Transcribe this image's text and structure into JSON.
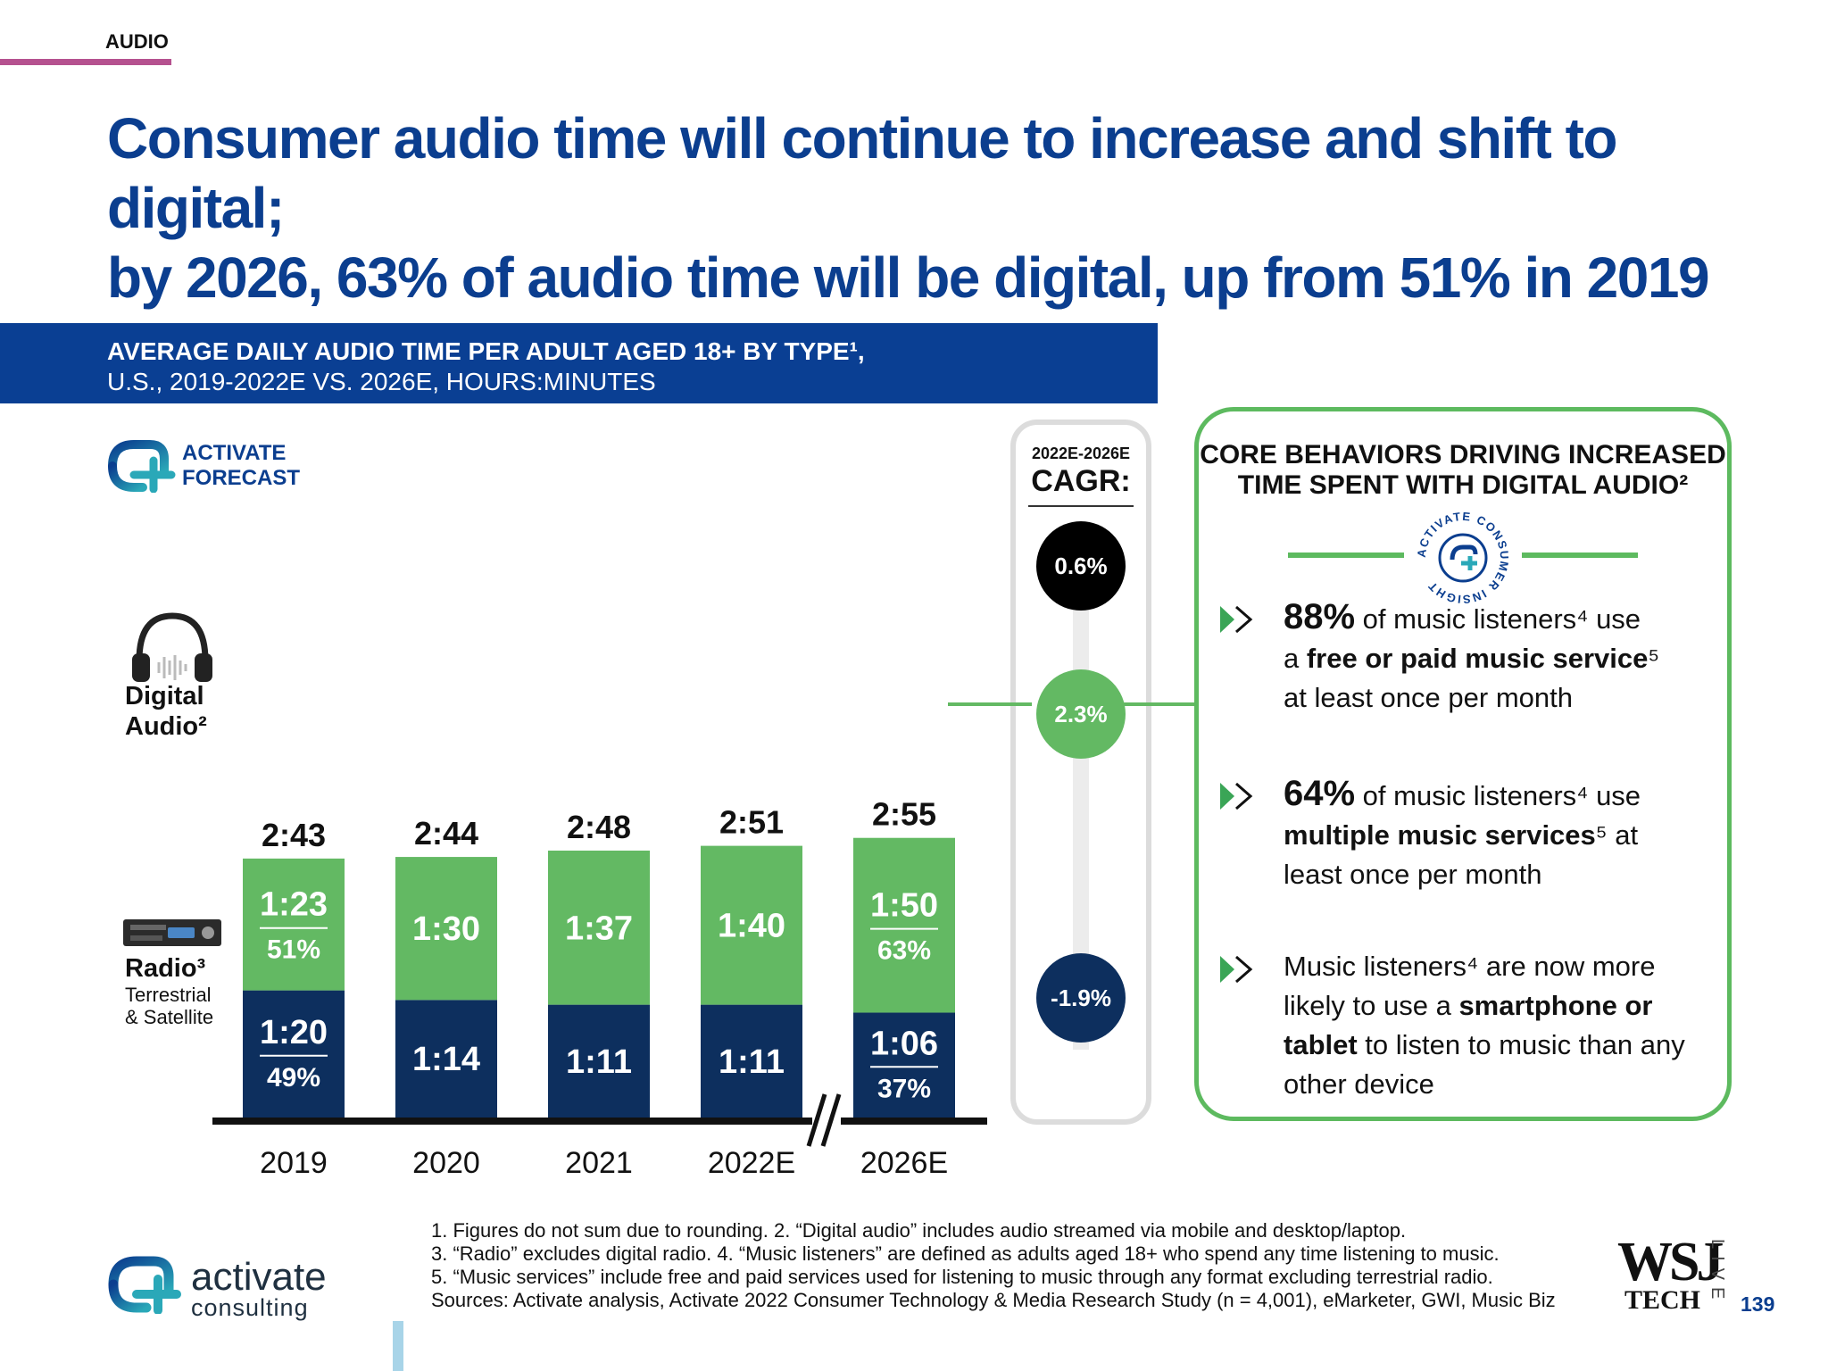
{
  "section": "AUDIO",
  "headline": {
    "line1": "Consumer audio time will continue to increase and shift to digital;",
    "line2": "by 2026, 63% of audio time will be digital, up from 51% in 2019"
  },
  "banner": {
    "line1": "AVERAGE DAILY AUDIO TIME PER ADULT AGED 18+ BY TYPE¹,",
    "line2": "U.S., 2019-2022E VS. 2026E, HOURS:MINUTES"
  },
  "forecast_badge": {
    "line1": "ACTIVATE",
    "line2": "FORECAST"
  },
  "legend": {
    "digital": {
      "line1": "Digital",
      "line2": "Audio²",
      "icon": "headphones-icon"
    },
    "radio": {
      "line1": "Radio³",
      "sub1": "Terrestrial",
      "sub2": "& Satellite",
      "icon": "radio-icon"
    }
  },
  "chart_data": {
    "type": "bar",
    "stacked": true,
    "categories": [
      "2019",
      "2020",
      "2021",
      "2022E",
      "2026E"
    ],
    "series": [
      {
        "name": "Radio³ Terrestrial & Satellite",
        "values": [
          80,
          74,
          71,
          71,
          66
        ],
        "labels": [
          "1:20",
          "1:14",
          "1:11",
          "1:11",
          "1:06"
        ],
        "shares": [
          "49%",
          "",
          "",
          "",
          "37%"
        ],
        "color": "#0d2f5e"
      },
      {
        "name": "Digital Audio²",
        "values": [
          83,
          90,
          97,
          100,
          110
        ],
        "labels": [
          "1:23",
          "1:30",
          "1:37",
          "1:40",
          "1:50"
        ],
        "shares": [
          "51%",
          "",
          "",
          "",
          "63%"
        ],
        "color": "#63b963"
      }
    ],
    "totals": [
      163,
      164,
      168,
      171,
      175
    ],
    "total_labels": [
      "2:43",
      "2:44",
      "2:48",
      "2:51",
      "2:55"
    ],
    "axis_break_before": "2026E",
    "ylim": [
      0,
      175
    ],
    "unit": "minutes",
    "grid": false
  },
  "cagr": {
    "head1": "2022E-2026E",
    "head2": "CAGR:",
    "total": "0.6%",
    "digital": "2.3%",
    "radio": "-1.9%",
    "colors": {
      "total": "#000000",
      "digital": "#63b963",
      "radio": "#0d2f5e"
    }
  },
  "behaviors": {
    "title_line1": "CORE BEHAVIORS DRIVING INCREASED",
    "title_line2": "TIME SPENT WITH DIGITAL AUDIO²",
    "seal_text": "ACTIVATE CONSUMER INSIGHT",
    "items": [
      {
        "pct": "88%",
        "l1": " of music listeners⁴ use",
        "l2_pre": "a ",
        "l2_bold": "free or paid music service",
        "l2_post": "⁵",
        "l3": "at least once per month"
      },
      {
        "pct": "64%",
        "l1": " of music listeners⁴ use",
        "l2_bold": "multiple music services",
        "l2_post": "⁵ at",
        "l3": "least once per month"
      },
      {
        "l1": "Music listeners⁴ are now more",
        "l2_pre": "likely to use a ",
        "l2_bold": "smartphone or",
        "l3_bold": "tablet",
        "l3_post": " to listen to music than any",
        "l4": "other device"
      }
    ]
  },
  "footnotes": [
    "1. Figures do not sum due to rounding.  2. “Digital audio” includes audio streamed via mobile and desktop/laptop.",
    "3. “Radio” excludes digital radio.  4. “Music listeners” are defined as adults aged 18+ who spend any time listening to music.",
    "5. “Music services” include free and paid services used for listening to music through any format excluding terrestrial radio.",
    "Sources: Activate analysis, Activate 2022 Consumer Technology & Media Research Study (n = 4,001), eMarketer, GWI, Music Biz"
  ],
  "brand": {
    "name": "activate",
    "sub": "consulting"
  },
  "wsj": {
    "top": "WSJ",
    "bottom": "TECH",
    "side": "LIVE"
  },
  "page_number": "139",
  "colors": {
    "navy": "#0d2f5e",
    "green": "#63b963",
    "headline_blue": "#0b3e8f",
    "banner_blue": "#0a3f93",
    "accent_pink": "#b5518f"
  }
}
